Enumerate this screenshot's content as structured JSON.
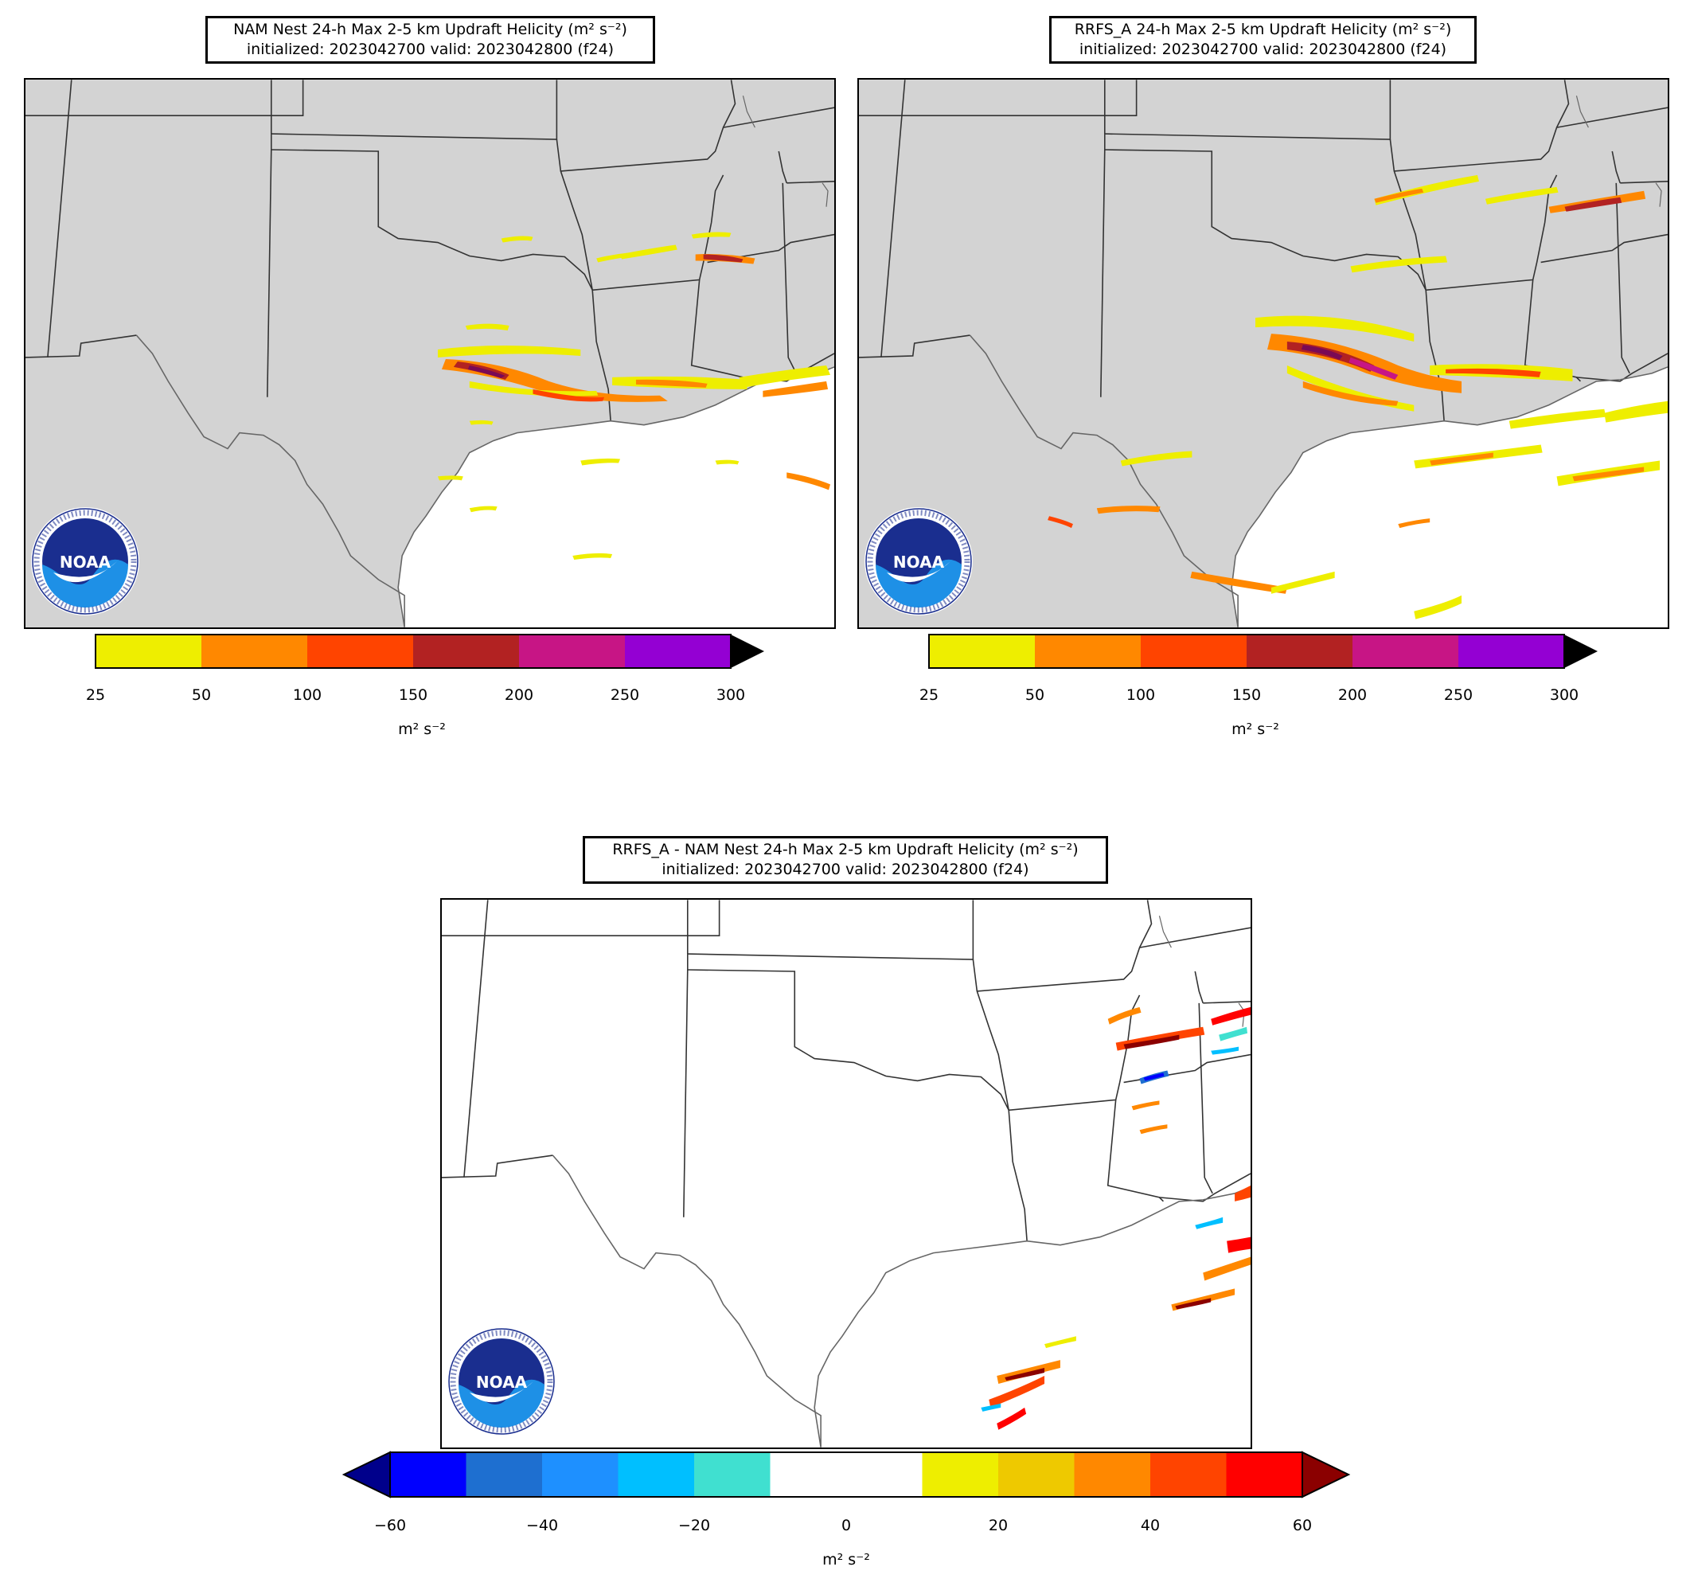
{
  "panels": [
    {
      "id": "nam",
      "title_line1": "NAM Nest 24-h Max 2-5 km Updraft Helicity (m² s⁻²)",
      "title_line2": "initialized: 2023042700 valid: 2023042800 (f24)",
      "land_color": "#d3d3d3",
      "colorbar": {
        "ticks": [
          "25",
          "50",
          "100",
          "150",
          "200",
          "250",
          "300"
        ],
        "colors": [
          "#eeee00",
          "#ff8800",
          "#ff4400",
          "#b22222",
          "#c71585",
          "#9400d3"
        ],
        "extend_color": "#000000",
        "units": "m² s⁻²"
      }
    },
    {
      "id": "rrfs",
      "title_line1": "RRFS_A 24-h Max 2-5 km Updraft Helicity (m² s⁻²)",
      "title_line2": "initialized: 2023042700 valid: 2023042800 (f24)",
      "land_color": "#d3d3d3",
      "colorbar": {
        "ticks": [
          "25",
          "50",
          "100",
          "150",
          "200",
          "250",
          "300"
        ],
        "colors": [
          "#eeee00",
          "#ff8800",
          "#ff4400",
          "#b22222",
          "#c71585",
          "#9400d3"
        ],
        "extend_color": "#000000",
        "units": "m² s⁻²"
      }
    },
    {
      "id": "diff",
      "title_line1": "RRFS_A - NAM Nest 24-h Max 2-5 km Updraft Helicity (m² s⁻²)",
      "title_line2": "initialized: 2023042700 valid: 2023042800 (f24)",
      "land_color": "#ffffff",
      "colorbar": {
        "ticks": [
          "−60",
          "−40",
          "−20",
          "0",
          "20",
          "40",
          "60"
        ],
        "colors": [
          "#0000ff",
          "#1e6fd0",
          "#1e90ff",
          "#00bfff",
          "#40e0d0",
          "#ffffff",
          "#ffffff",
          "#eeee00",
          "#eec900",
          "#ff8800",
          "#ff4400",
          "#ff0000"
        ],
        "extend_low_color": "#00008b",
        "extend_high_color": "#8b0000",
        "units": "m² s⁻²"
      }
    }
  ],
  "logo": {
    "text": "NOAA",
    "ring_text": "NATIONAL OCEANIC AND ATMOSPHERIC ADMINISTRATION",
    "ring_text_bottom": "U.S. DEPARTMENT OF COMMERCE",
    "dark_blue": "#1a2e8f",
    "light_blue": "#1e90e6"
  }
}
